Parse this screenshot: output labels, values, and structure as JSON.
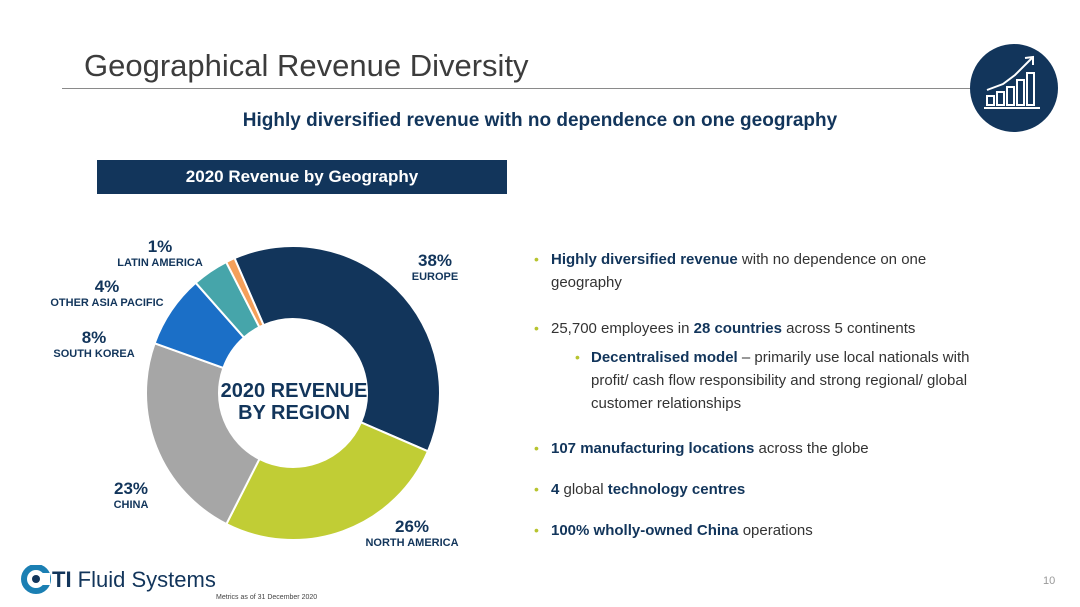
{
  "header": {
    "title": "Geographical Revenue Diversity",
    "subtitle": "Highly diversified revenue with no dependence on one geography",
    "badge_icon": "growth-bar-chart-icon"
  },
  "chart_data": {
    "type": "pie",
    "variant": "donut",
    "title": "2020 Revenue by Geography",
    "center_label_line1": "2020 REVENUE",
    "center_label_line2": "BY REGION",
    "slices": [
      {
        "label": "EUROPE",
        "value": 38,
        "value_label": "38%",
        "color": "#12355b"
      },
      {
        "label": "NORTH AMERICA",
        "value": 26,
        "value_label": "26%",
        "color": "#c1cd35"
      },
      {
        "label": "CHINA",
        "value": 23,
        "value_label": "23%",
        "color": "#a6a6a6"
      },
      {
        "label": "SOUTH KOREA",
        "value": 8,
        "value_label": "8%",
        "color": "#1b6fc7"
      },
      {
        "label": "OTHER ASIA PACIFIC",
        "value": 4,
        "value_label": "4%",
        "color": "#46a5aa"
      },
      {
        "label": "LATIN AMERICA",
        "value": 1,
        "value_label": "1%",
        "color": "#f5a05a"
      }
    ]
  },
  "bullets": [
    {
      "level": 1,
      "parts": [
        {
          "b": true,
          "t": "Highly diversified revenue"
        },
        {
          "b": false,
          "t": " with no dependence on one geography"
        }
      ]
    },
    {
      "level": 1,
      "parts": [
        {
          "b": false,
          "t": "25,700 employees in "
        },
        {
          "b": true,
          "t": "28 countries"
        },
        {
          "b": false,
          "t": " across 5 continents"
        }
      ]
    },
    {
      "level": 2,
      "parts": [
        {
          "b": true,
          "t": "Decentralised model"
        },
        {
          "b": false,
          "t": " – primarily use local nationals with profit/ cash flow responsibility and strong regional/ global customer relationships"
        }
      ]
    },
    {
      "level": 1,
      "parts": [
        {
          "b": true,
          "t": "107 manufacturing locations"
        },
        {
          "b": false,
          "t": " across the globe"
        }
      ]
    },
    {
      "level": 1,
      "parts": [
        {
          "b": true,
          "t": "4"
        },
        {
          "b": false,
          "t": " global "
        },
        {
          "b": true,
          "t": "technology centres"
        }
      ]
    },
    {
      "level": 1,
      "parts": [
        {
          "b": true,
          "t": "100% wholly-owned China"
        },
        {
          "b": false,
          "t": " operations"
        }
      ]
    }
  ],
  "footer": {
    "logo_bold": "TI",
    "logo_text": " Fluid Systems",
    "metrics_note": "Metrics as of 31 December 2020",
    "page_number": "10"
  },
  "colors": {
    "navy": "#12355b",
    "bullet_accent": "#b7c42f"
  }
}
